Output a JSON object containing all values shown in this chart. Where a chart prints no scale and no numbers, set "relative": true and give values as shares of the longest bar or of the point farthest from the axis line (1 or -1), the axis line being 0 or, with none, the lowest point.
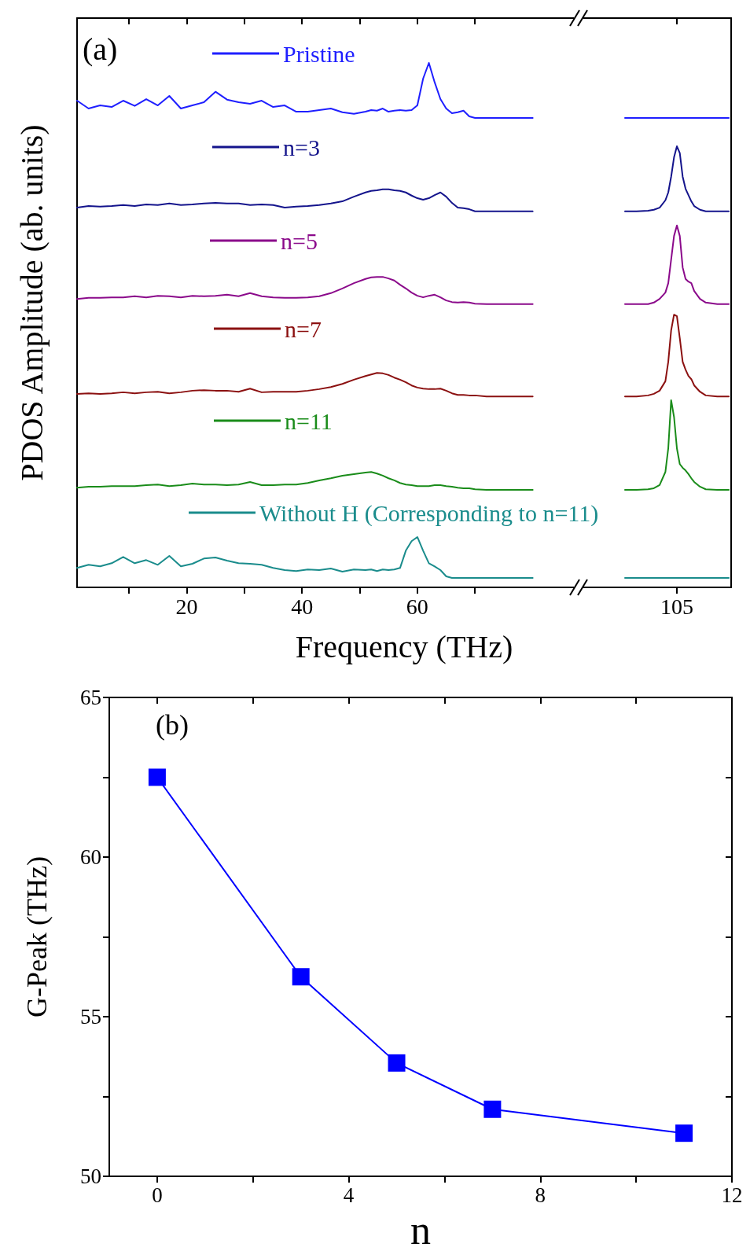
{
  "chart_data": [
    {
      "type": "line",
      "relative": true,
      "xlabel": "Frequency (THz)",
      "ylabel": "PDOS Amplitude (ab. units)",
      "annotations": [
        "(a)"
      ],
      "legend": "top",
      "xlim": [
        1,
        114.4
      ],
      "xticks": [
        {
          "value": 10,
          "label": null
        },
        20,
        {
          "value": 30,
          "label": null
        },
        40,
        {
          "value": 50,
          "label": null
        },
        60,
        {
          "value": 70,
          "label": null
        },
        105
      ],
      "x": [
        1,
        3,
        5,
        7,
        9,
        11,
        13,
        15,
        17,
        19,
        21,
        23,
        25,
        27,
        29,
        31,
        33,
        35,
        37,
        39,
        41,
        43,
        45,
        47,
        49,
        51,
        52,
        53,
        54,
        55,
        56,
        57,
        58,
        59,
        60,
        61,
        62,
        63,
        64,
        65,
        66,
        67,
        68,
        69,
        70,
        72,
        74,
        76,
        78,
        80,
        88,
        96,
        98,
        100,
        101,
        102,
        103,
        103.5,
        104,
        104.5,
        105,
        105.5,
        106,
        106.5,
        107,
        107.5,
        108,
        109,
        110,
        112,
        114
      ],
      "series": [
        {
          "name": "Pristine",
          "color": "#1f1fff",
          "values": [
            0.928,
            0.913,
            0.919,
            0.916,
            0.928,
            0.918,
            0.931,
            0.919,
            0.937,
            0.913,
            0.919,
            0.925,
            0.945,
            0.93,
            0.925,
            0.922,
            0.928,
            0.916,
            0.919,
            0.907,
            0.907,
            0.91,
            0.913,
            0.906,
            0.903,
            0.907,
            0.91,
            0.909,
            0.913,
            0.907,
            0.909,
            0.91,
            0.909,
            0.91,
            0.919,
            0.97,
            1,
            0.963,
            0.931,
            0.913,
            0.904,
            0.906,
            0.909,
            0.898,
            0.895,
            0.895,
            0.895,
            0.895,
            0.895,
            0.895,
            null,
            0.895,
            0.895,
            0.895,
            0.895,
            0.895,
            0.895,
            0.895,
            0.895,
            0.895,
            0.895,
            0.895,
            0.895,
            0.895,
            0.895,
            0.895,
            0.895,
            0.895,
            0.895,
            0.895,
            0.895
          ]
        },
        {
          "name": "n=3",
          "color": "#14148c",
          "values": [
            0.724,
            0.727,
            0.726,
            0.727,
            0.729,
            0.727,
            0.73,
            0.729,
            0.732,
            0.729,
            0.73,
            0.732,
            0.733,
            0.732,
            0.732,
            0.729,
            0.73,
            0.729,
            0.724,
            0.726,
            0.727,
            0.729,
            0.732,
            0.736,
            0.745,
            0.753,
            0.756,
            0.757,
            0.759,
            0.759,
            0.757,
            0.756,
            0.753,
            0.747,
            0.742,
            0.739,
            0.742,
            0.748,
            0.753,
            0.745,
            0.733,
            0.724,
            0.723,
            0.721,
            0.717,
            0.717,
            0.717,
            0.717,
            0.717,
            0.717,
            null,
            0.717,
            0.717,
            0.718,
            0.72,
            0.724,
            0.738,
            0.753,
            0.783,
            0.82,
            0.841,
            0.828,
            0.783,
            0.76,
            0.748,
            0.736,
            0.727,
            0.72,
            0.717,
            0.717,
            0.717
          ]
        },
        {
          "name": "n=5",
          "color": "#8b0a8b",
          "values": [
            0.55,
            0.552,
            0.552,
            0.553,
            0.553,
            0.555,
            0.553,
            0.556,
            0.555,
            0.553,
            0.556,
            0.555,
            0.556,
            0.558,
            0.555,
            0.561,
            0.555,
            0.553,
            0.552,
            0.552,
            0.553,
            0.555,
            0.561,
            0.57,
            0.58,
            0.588,
            0.591,
            0.592,
            0.592,
            0.589,
            0.585,
            0.577,
            0.57,
            0.562,
            0.556,
            0.553,
            0.556,
            0.558,
            0.553,
            0.547,
            0.544,
            0.543,
            0.544,
            0.543,
            0.541,
            0.54,
            0.54,
            0.54,
            0.54,
            0.54,
            null,
            0.54,
            0.54,
            0.54,
            0.543,
            0.55,
            0.562,
            0.58,
            0.625,
            0.67,
            0.69,
            0.67,
            0.61,
            0.588,
            0.583,
            0.58,
            0.565,
            0.55,
            0.543,
            0.54,
            0.54
          ]
        },
        {
          "name": "n=7",
          "color": "#8b1010",
          "values": [
            0.369,
            0.37,
            0.369,
            0.37,
            0.372,
            0.37,
            0.372,
            0.373,
            0.37,
            0.372,
            0.375,
            0.376,
            0.375,
            0.375,
            0.373,
            0.379,
            0.372,
            0.373,
            0.373,
            0.373,
            0.375,
            0.378,
            0.382,
            0.388,
            0.396,
            0.403,
            0.406,
            0.409,
            0.408,
            0.405,
            0.4,
            0.396,
            0.391,
            0.385,
            0.381,
            0.379,
            0.378,
            0.378,
            0.379,
            0.375,
            0.37,
            0.367,
            0.367,
            0.366,
            0.366,
            0.364,
            0.364,
            0.364,
            0.364,
            0.364,
            null,
            0.364,
            0.364,
            0.366,
            0.369,
            0.375,
            0.393,
            0.43,
            0.49,
            0.52,
            0.517,
            0.475,
            0.43,
            0.415,
            0.403,
            0.397,
            0.385,
            0.373,
            0.366,
            0.364,
            0.364
          ]
        },
        {
          "name": "n=11",
          "color": "#1a8c1a",
          "values": [
            0.19,
            0.192,
            0.192,
            0.193,
            0.193,
            0.193,
            0.195,
            0.196,
            0.193,
            0.195,
            0.198,
            0.196,
            0.196,
            0.195,
            0.196,
            0.201,
            0.195,
            0.195,
            0.196,
            0.196,
            0.199,
            0.204,
            0.208,
            0.213,
            0.216,
            0.219,
            0.22,
            0.217,
            0.213,
            0.208,
            0.204,
            0.199,
            0.196,
            0.195,
            0.193,
            0.193,
            0.193,
            0.195,
            0.195,
            0.193,
            0.192,
            0.19,
            0.189,
            0.189,
            0.187,
            0.186,
            0.186,
            0.186,
            0.186,
            0.186,
            null,
            0.186,
            0.186,
            0.187,
            0.189,
            0.195,
            0.22,
            0.265,
            0.357,
            0.325,
            0.265,
            0.235,
            0.228,
            0.223,
            0.216,
            0.208,
            0.201,
            0.192,
            0.187,
            0.186,
            0.186
          ]
        },
        {
          "name": "Without H (Corresponding to n=11)",
          "color": "#1a8c8c",
          "values": [
            0.037,
            0.043,
            0.04,
            0.046,
            0.058,
            0.046,
            0.052,
            0.043,
            0.06,
            0.04,
            0.045,
            0.055,
            0.057,
            0.051,
            0.046,
            0.045,
            0.043,
            0.037,
            0.033,
            0.031,
            0.034,
            0.033,
            0.036,
            0.03,
            0.034,
            0.033,
            0.034,
            0.031,
            0.034,
            0.033,
            0.034,
            0.037,
            0.07,
            0.088,
            0.096,
            0.07,
            0.046,
            0.04,
            0.033,
            0.021,
            0.018,
            0.018,
            0.018,
            0.018,
            0.018,
            0.018,
            0.018,
            0.018,
            0.018,
            0.018,
            null,
            0.018,
            0.018,
            0.018,
            0.018,
            0.018,
            0.018,
            0.018,
            0.018,
            0.018,
            0.018,
            0.018,
            0.018,
            0.018,
            0.018,
            0.018,
            0.018,
            0.018,
            0.018,
            0.018,
            0.018
          ]
        }
      ]
    },
    {
      "type": "line",
      "xlabel": "n",
      "ylabel": "G-Peak (THz)",
      "annotations": [
        "(b)"
      ],
      "marker": "square",
      "line_style": "solid",
      "xlim": [
        -1,
        12
      ],
      "xticks": [
        0,
        {
          "value": 2,
          "label": null
        },
        4,
        {
          "value": 6,
          "label": null
        },
        8,
        {
          "value": 10,
          "label": null
        },
        12
      ],
      "ylim": [
        50,
        65
      ],
      "yticks": [
        50,
        {
          "value": 52.5,
          "label": null
        },
        55,
        {
          "value": 57.5,
          "label": null
        },
        60,
        {
          "value": 62.5,
          "label": null
        },
        65
      ],
      "x": [
        0,
        3,
        5,
        7,
        11
      ],
      "series": [
        {
          "color": "#0000ff",
          "values": [
            62.5,
            56.25,
            53.55,
            52.1,
            51.35
          ]
        }
      ]
    }
  ]
}
